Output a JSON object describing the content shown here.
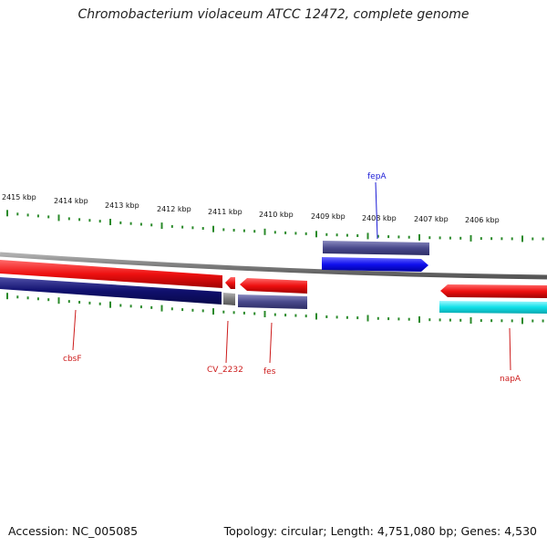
{
  "title": "Chromobacterium violaceum ATCC 12472, complete genome",
  "footer": {
    "accession": "Accession: NC_005085",
    "info": "Topology: circular; Length: 4,751,080 bp; Genes: 4,530"
  },
  "scale_labels": [
    "2415 kbp",
    "2414 kbp",
    "2413 kbp",
    "2412 kbp",
    "2411 kbp",
    "2410 kbp",
    "2409 kbp",
    "2408 kbp",
    "2407 kbp",
    "2406 kbp"
  ],
  "genes": [
    {
      "name": "fepA",
      "strand": "forward"
    },
    {
      "name": "cbsF",
      "strand": "reverse"
    },
    {
      "name": "CV_2232",
      "strand": "reverse"
    },
    {
      "name": "fes",
      "strand": "reverse"
    },
    {
      "name": "napA",
      "strand": "reverse"
    }
  ],
  "colors": {
    "forward_cds": "#1010ee",
    "reverse_cds": "#ee1010",
    "forward_feature": "#4a4a8c",
    "reverse_feature_dark": "#10106e",
    "reverse_feature_light": "#5b5b9b",
    "cyan_feature": "#10e0e8",
    "backbone": "#8c8c8c",
    "ticks": "#2a8a2a",
    "label_forward": "#1a1ad6",
    "label_reverse": "#cc1a1a"
  }
}
